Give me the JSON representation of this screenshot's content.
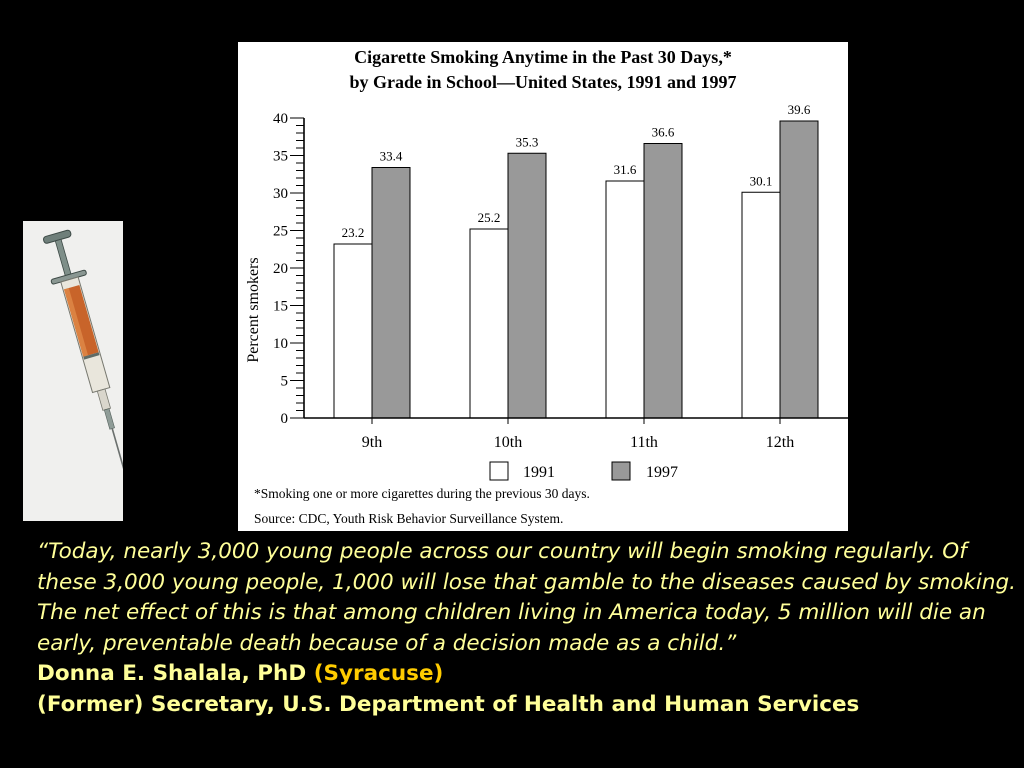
{
  "quote": {
    "text": "“Today, nearly 3,000 young people across our country will begin smoking regularly. Of these 3,000 young people, 1,000 will lose that gamble to the diseases caused by smoking. The net effect of this is that among children living in America today, 5 million will die an early, preventable death because of a decision made as a child.”",
    "author_name": "Donna E. Shalala, PhD",
    "author_affiliation": "(Syracuse)",
    "author_title": "(Former) Secretary, U.S. Department of Health and Human Services"
  },
  "colors": {
    "background": "#000000",
    "quote_text": "#ffff99",
    "affiliation_text": "#ffcc00",
    "bar_1991": "#ffffff",
    "bar_1997": "#999999"
  },
  "icons": [
    "syringe-icon"
  ],
  "chart_data": {
    "type": "bar",
    "title_line1": "Cigarette Smoking Anytime in the Past 30 Days,*",
    "title_line2": "by Grade in School—United States, 1991 and 1997",
    "xlabel": "",
    "ylabel": "Percent smokers",
    "categories": [
      "9th",
      "10th",
      "11th",
      "12th"
    ],
    "series": [
      {
        "name": "1991",
        "values": [
          23.2,
          25.2,
          31.6,
          30.1
        ],
        "color": "#ffffff"
      },
      {
        "name": "1997",
        "values": [
          33.4,
          35.3,
          36.6,
          39.6
        ],
        "color": "#999999"
      }
    ],
    "ylim": [
      0,
      40
    ],
    "yticks": [
      0,
      5,
      10,
      15,
      20,
      25,
      30,
      35,
      40
    ],
    "value_labels": true,
    "legend_placement": "bottom-center",
    "grid": false,
    "footnote": "*Smoking one or more cigarettes during the previous 30 days.",
    "source": "Source: CDC, Youth Risk Behavior Surveillance System."
  }
}
